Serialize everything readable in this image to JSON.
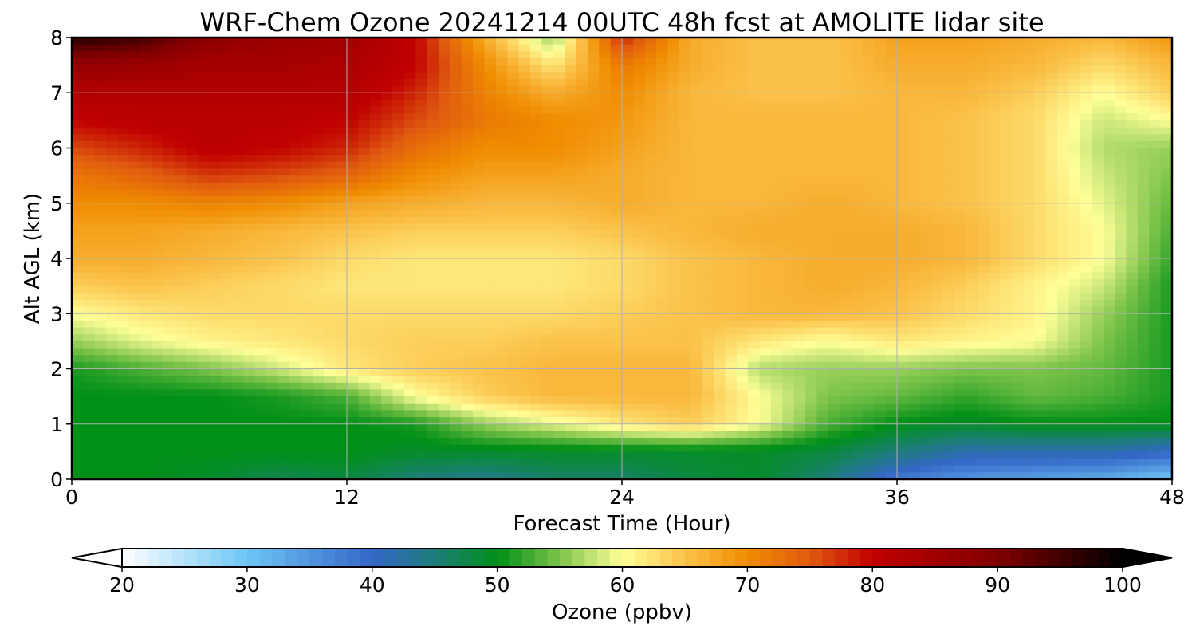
{
  "chart_data": {
    "type": "heatmap",
    "title": "WRF-Chem Ozone  20241214 00UTC 48h fcst at AMOLITE lidar site",
    "xlabel": "Forecast Time (Hour)",
    "ylabel": "Alt AGL (km)",
    "xlim": [
      0,
      48
    ],
    "ylim": [
      0,
      8
    ],
    "xticks": [
      0,
      12,
      24,
      36,
      48
    ],
    "yticks": [
      0,
      1,
      2,
      3,
      4,
      5,
      6,
      7,
      8
    ],
    "grid": true,
    "x": [
      0,
      3,
      6,
      9,
      12,
      15,
      18,
      21,
      24,
      27,
      30,
      33,
      36,
      39,
      42,
      45,
      48
    ],
    "y": [
      0,
      0.5,
      1,
      1.5,
      2,
      2.5,
      3,
      3.5,
      4,
      4.5,
      5,
      5.5,
      6,
      6.5,
      7,
      7.5,
      8
    ],
    "z": [
      [
        50,
        50,
        49,
        47,
        48,
        45,
        44,
        46,
        46,
        48,
        49,
        45,
        38,
        35,
        34,
        33,
        30
      ],
      [
        50,
        50,
        50,
        50,
        50,
        49,
        49,
        49,
        49,
        49,
        49,
        48,
        45,
        42,
        42,
        42,
        40
      ],
      [
        50,
        50,
        50,
        50,
        50,
        51,
        56,
        59,
        62,
        64,
        60,
        53,
        50,
        49,
        50,
        50,
        50
      ],
      [
        50,
        50,
        50,
        51,
        53,
        60,
        64,
        66,
        66,
        66,
        60,
        55,
        54,
        52,
        54,
        53,
        51
      ],
      [
        51,
        53,
        55,
        58,
        62,
        64,
        65,
        66,
        66,
        66,
        57,
        56,
        56,
        55,
        55,
        54,
        51
      ],
      [
        56,
        59,
        61,
        62,
        63,
        64,
        64,
        65,
        65,
        65,
        62,
        60,
        62,
        61,
        60,
        55,
        51
      ],
      [
        60,
        62,
        63,
        63,
        63,
        63,
        63,
        63,
        64,
        65,
        66,
        66,
        65,
        63,
        61,
        56,
        51
      ],
      [
        64,
        65,
        64,
        63,
        62,
        62,
        62,
        62,
        63,
        65,
        66,
        67,
        66,
        64,
        61,
        58,
        51
      ],
      [
        67,
        67,
        66,
        65,
        63,
        62,
        62,
        62,
        63,
        65,
        66,
        67,
        67,
        66,
        63,
        60,
        52
      ],
      [
        68,
        68,
        67,
        66,
        65,
        64,
        64,
        64,
        65,
        66,
        67,
        67,
        67,
        66,
        63,
        60,
        53
      ],
      [
        70,
        70,
        71,
        70,
        68,
        67,
        66,
        66,
        67,
        66,
        66,
        67,
        66,
        65,
        63,
        59,
        54
      ],
      [
        72,
        74,
        77,
        76,
        74,
        70,
        68,
        68,
        67,
        66,
        66,
        66,
        66,
        65,
        63,
        58,
        55
      ],
      [
        76,
        78,
        81,
        80,
        78,
        73,
        70,
        70,
        68,
        66,
        66,
        66,
        66,
        65,
        63,
        57,
        56
      ],
      [
        80,
        81,
        81,
        81,
        80,
        76,
        72,
        70,
        69,
        66,
        66,
        66,
        66,
        65,
        63,
        58,
        60
      ],
      [
        82,
        82,
        82,
        82,
        82,
        78,
        71,
        67,
        70,
        66,
        65,
        65,
        66,
        66,
        64,
        60,
        64
      ],
      [
        87,
        86,
        84,
        84,
        83,
        80,
        70,
        62,
        72,
        67,
        65,
        65,
        67,
        67,
        66,
        63,
        66
      ],
      [
        97,
        95,
        88,
        86,
        85,
        80,
        67,
        56,
        78,
        67,
        65,
        65,
        68,
        68,
        67,
        66,
        69
      ]
    ],
    "colorbar": {
      "label": "Ozone  (ppbv)",
      "ticks": [
        20,
        30,
        40,
        50,
        60,
        70,
        80,
        90,
        100
      ],
      "range": [
        20,
        100
      ],
      "extend": "both",
      "orientation": "horizontal"
    },
    "colormap": [
      [
        20,
        "#ffffff"
      ],
      [
        30,
        "#6ec6f5"
      ],
      [
        40,
        "#3466c8"
      ],
      [
        45,
        "#1d7d7a"
      ],
      [
        50,
        "#008f17"
      ],
      [
        55,
        "#7ec44a"
      ],
      [
        60,
        "#ffff99"
      ],
      [
        65,
        "#fbc24a"
      ],
      [
        70,
        "#f08c00"
      ],
      [
        75,
        "#e05a10"
      ],
      [
        80,
        "#c00000"
      ],
      [
        90,
        "#800000"
      ],
      [
        100,
        "#000000"
      ]
    ]
  }
}
